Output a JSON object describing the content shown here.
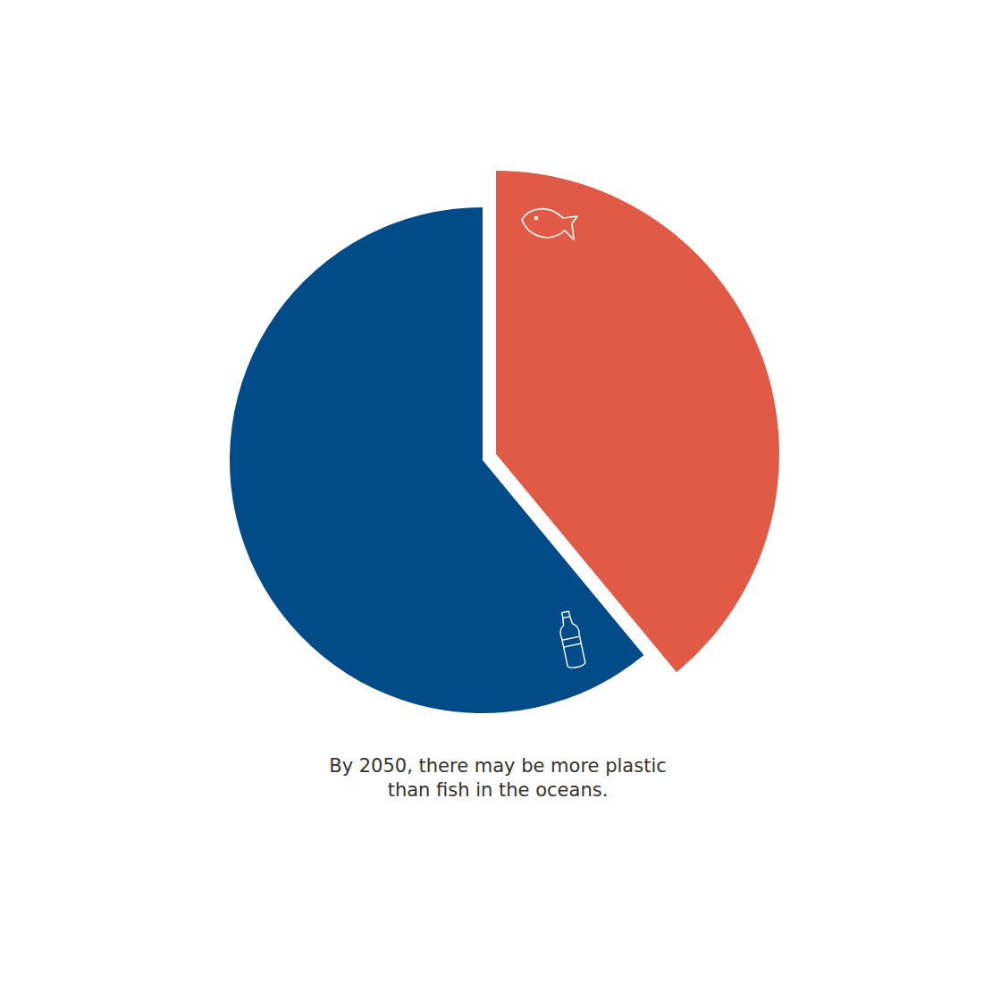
{
  "chart_data": {
    "type": "pie",
    "title": "By 2050, there may be more plastic than fish in the oceans.",
    "values": [
      39,
      61
    ],
    "colors": [
      "#e05a45",
      "#024b89"
    ]
  }
}
